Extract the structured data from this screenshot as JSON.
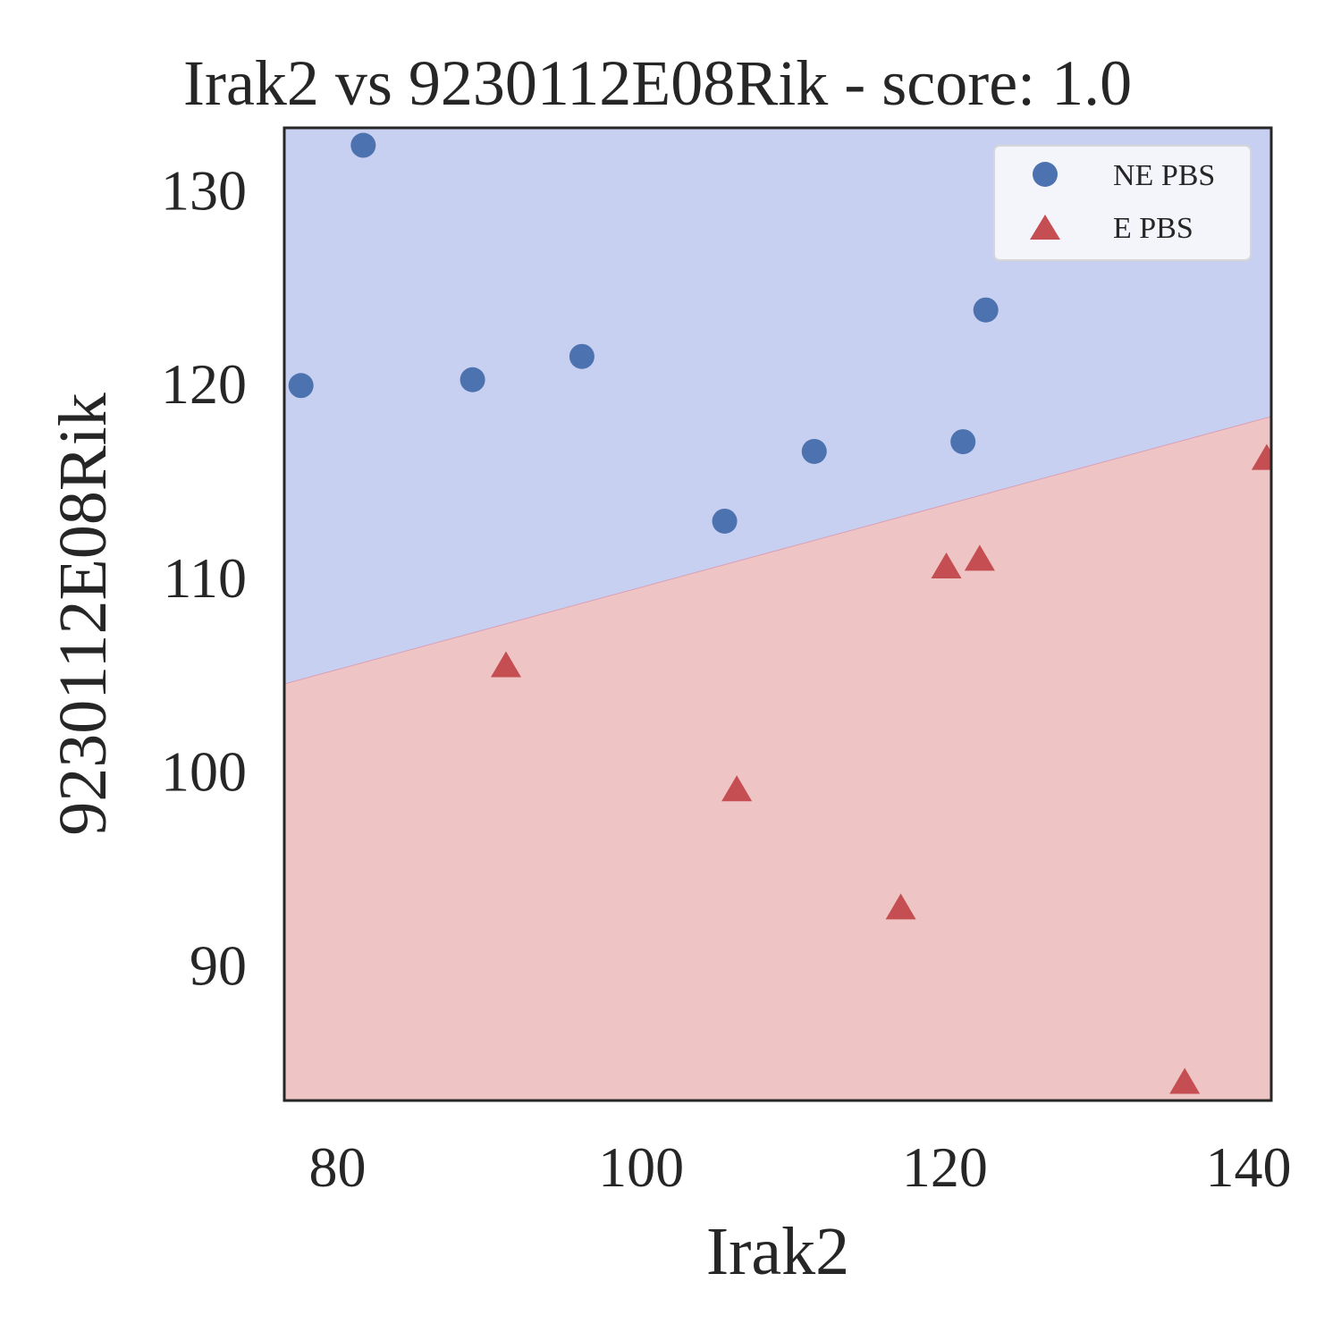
{
  "chart_data": {
    "type": "scatter",
    "title": "Irak2 vs 9230112E08Rik - score: 1.0",
    "xlabel": "Irak2",
    "ylabel": "9230112E08Rik",
    "xlim": [
      76.5,
      141.5
    ],
    "ylim": [
      83,
      133.2
    ],
    "xticks": [
      80,
      100,
      120,
      140
    ],
    "yticks": [
      90,
      100,
      110,
      120,
      130
    ],
    "grid": false,
    "legend_position": "top-right",
    "decision_boundary": {
      "x": [
        76.5,
        141.5
      ],
      "y": [
        104.5,
        118.3
      ]
    },
    "region_colors": {
      "upper": "#c8d0f1",
      "lower": "#eec4c4"
    },
    "series": [
      {
        "name": "NE PBS",
        "marker": "circle",
        "color": "#4c72b0",
        "points": [
          {
            "x": 77.6,
            "y": 119.9
          },
          {
            "x": 81.7,
            "y": 132.3
          },
          {
            "x": 88.9,
            "y": 120.2
          },
          {
            "x": 96.1,
            "y": 121.4
          },
          {
            "x": 105.5,
            "y": 112.9
          },
          {
            "x": 111.4,
            "y": 116.5
          },
          {
            "x": 121.2,
            "y": 117.0
          },
          {
            "x": 122.7,
            "y": 123.8
          }
        ]
      },
      {
        "name": "E PBS",
        "marker": "triangle",
        "color": "#c44e52",
        "points": [
          {
            "x": 91.1,
            "y": 105.4
          },
          {
            "x": 106.3,
            "y": 99.0
          },
          {
            "x": 117.1,
            "y": 92.9
          },
          {
            "x": 120.1,
            "y": 110.5
          },
          {
            "x": 122.3,
            "y": 110.9
          },
          {
            "x": 135.8,
            "y": 83.9
          },
          {
            "x": 141.2,
            "y": 116.1
          }
        ]
      }
    ]
  }
}
